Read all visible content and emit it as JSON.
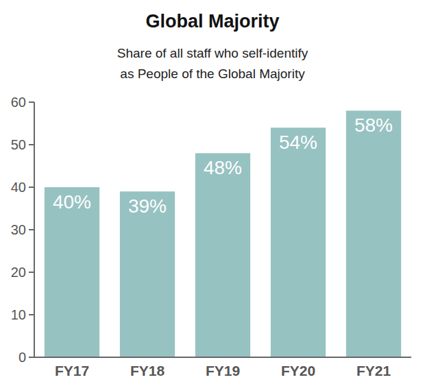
{
  "chart_data": {
    "type": "bar",
    "title": "Global Majority",
    "subtitle": [
      "Share of all staff who self-identify",
      "as People of the Global Majority"
    ],
    "categories": [
      "FY17",
      "FY18",
      "FY19",
      "FY20",
      "FY21"
    ],
    "values": [
      40,
      39,
      48,
      54,
      58
    ],
    "value_labels": [
      "40%",
      "39%",
      "48%",
      "54%",
      "58%"
    ],
    "color": "#97c2c2",
    "ylim": [
      0,
      60
    ],
    "yticks": [
      0,
      10,
      20,
      30,
      40,
      50,
      60
    ],
    "grid": false,
    "data_labels": true
  }
}
